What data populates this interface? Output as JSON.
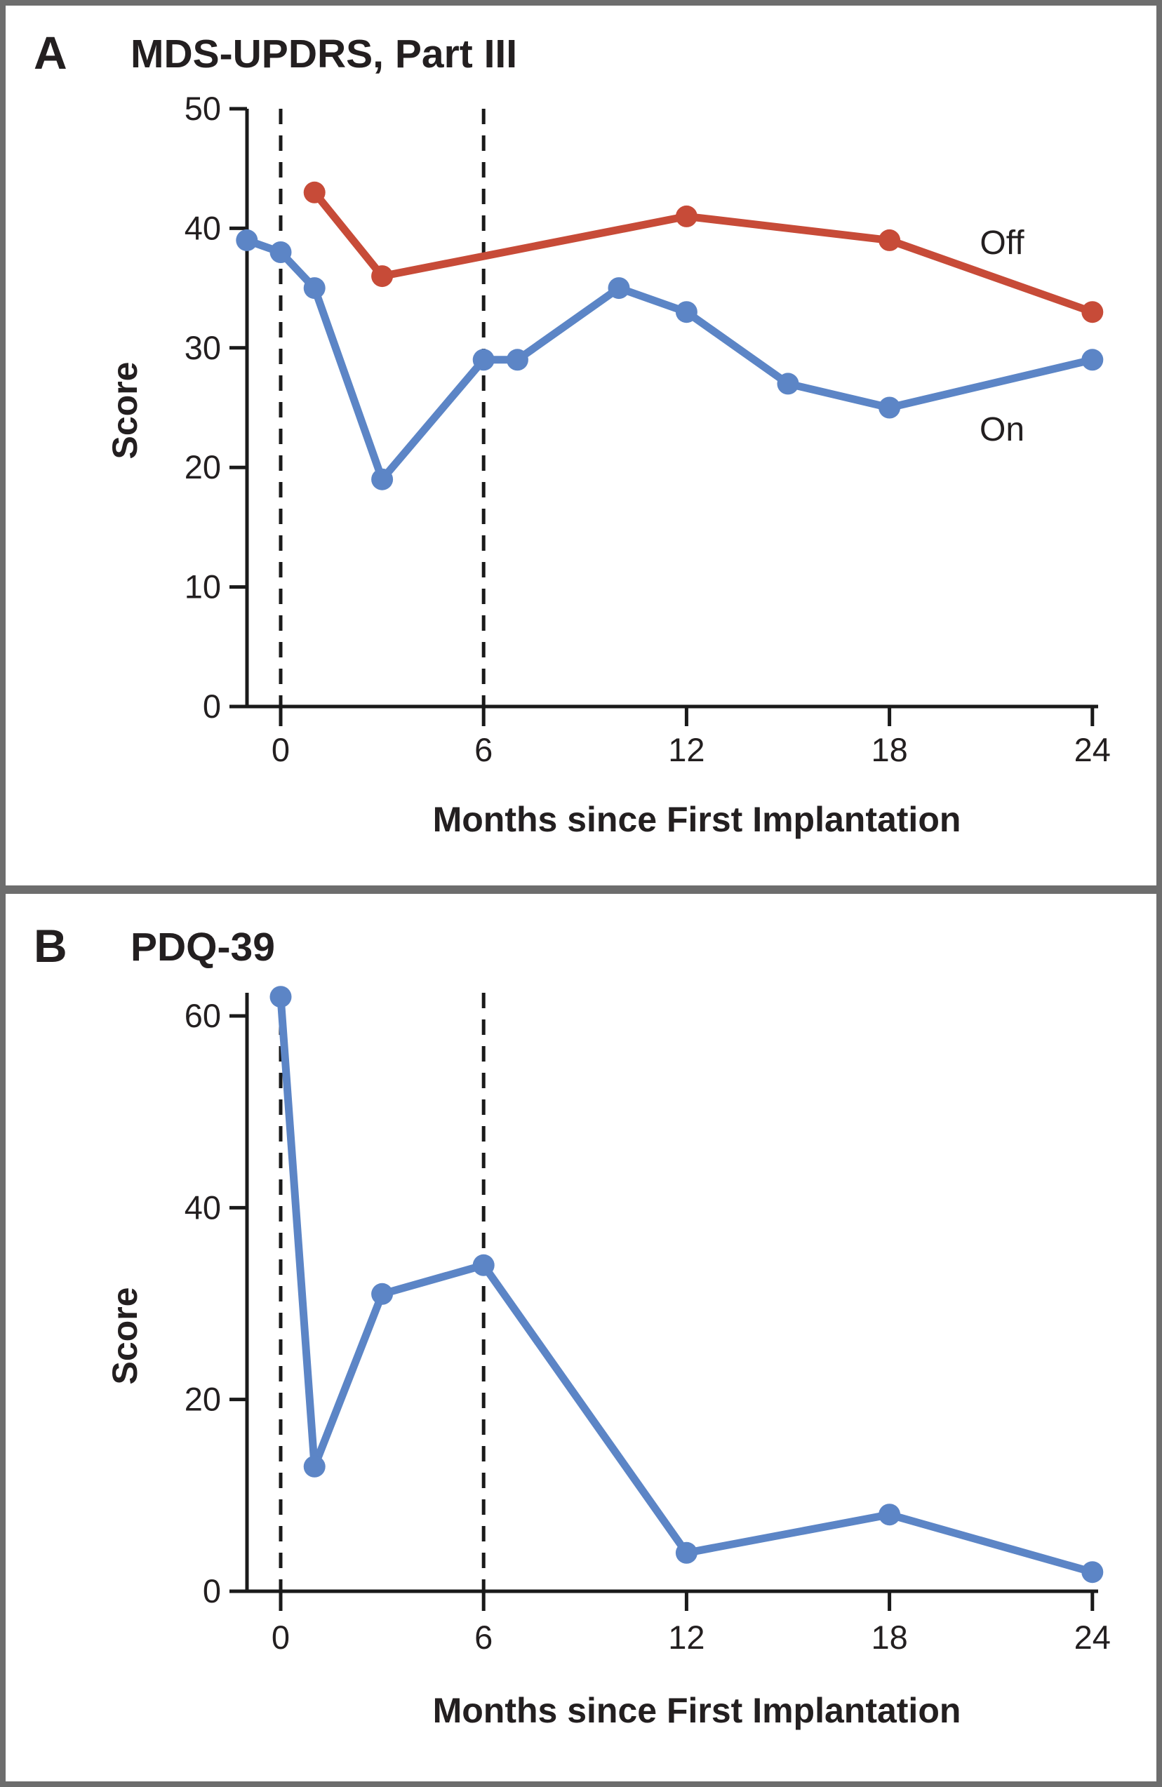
{
  "figure": {
    "frame_color": "#6d6d6d",
    "background": "#ffffff",
    "axis_color": "#1a1a1a",
    "text_color": "#231f20"
  },
  "chart_data": [
    {
      "type": "line",
      "panel_label": "A",
      "title": "MDS-UPDRS, Part III",
      "xlabel": "Months since First Implantation",
      "ylabel": "Score",
      "xlim": [
        -1,
        24.5
      ],
      "ylim": [
        0,
        50
      ],
      "x_ticks": [
        0,
        6,
        12,
        18,
        24
      ],
      "y_ticks": [
        0,
        10,
        20,
        30,
        40,
        50
      ],
      "grid": false,
      "dashed_vlines_at_months": [
        0,
        6
      ],
      "legend_position": "inline-labels",
      "series": [
        {
          "name": "Off",
          "color": "#c74b38",
          "x": [
            1,
            3,
            12,
            18,
            24
          ],
          "y": [
            43,
            36,
            41,
            39,
            33
          ]
        },
        {
          "name": "On",
          "color": "#5c85c6",
          "x": [
            -1,
            0,
            1,
            3,
            6,
            7,
            10,
            12,
            15,
            18,
            24
          ],
          "y": [
            39,
            38,
            35,
            19,
            29,
            29,
            35,
            33,
            27,
            25,
            29
          ]
        }
      ]
    },
    {
      "type": "line",
      "panel_label": "B",
      "title": "PDQ-39",
      "xlabel": "Months since First Implantation",
      "ylabel": "Score",
      "xlim": [
        -1,
        24.5
      ],
      "ylim": [
        0,
        64
      ],
      "x_ticks": [
        0,
        6,
        12,
        18,
        24
      ],
      "y_ticks": [
        0,
        20,
        40,
        60
      ],
      "grid": false,
      "dashed_vlines_at_months": [
        0,
        6
      ],
      "legend_position": "none",
      "series": [
        {
          "name": "PDQ-39",
          "color": "#5c85c6",
          "x": [
            0,
            1,
            3,
            6,
            12,
            18,
            24
          ],
          "y": [
            62,
            13,
            31,
            34,
            4,
            8,
            2
          ]
        }
      ]
    }
  ]
}
